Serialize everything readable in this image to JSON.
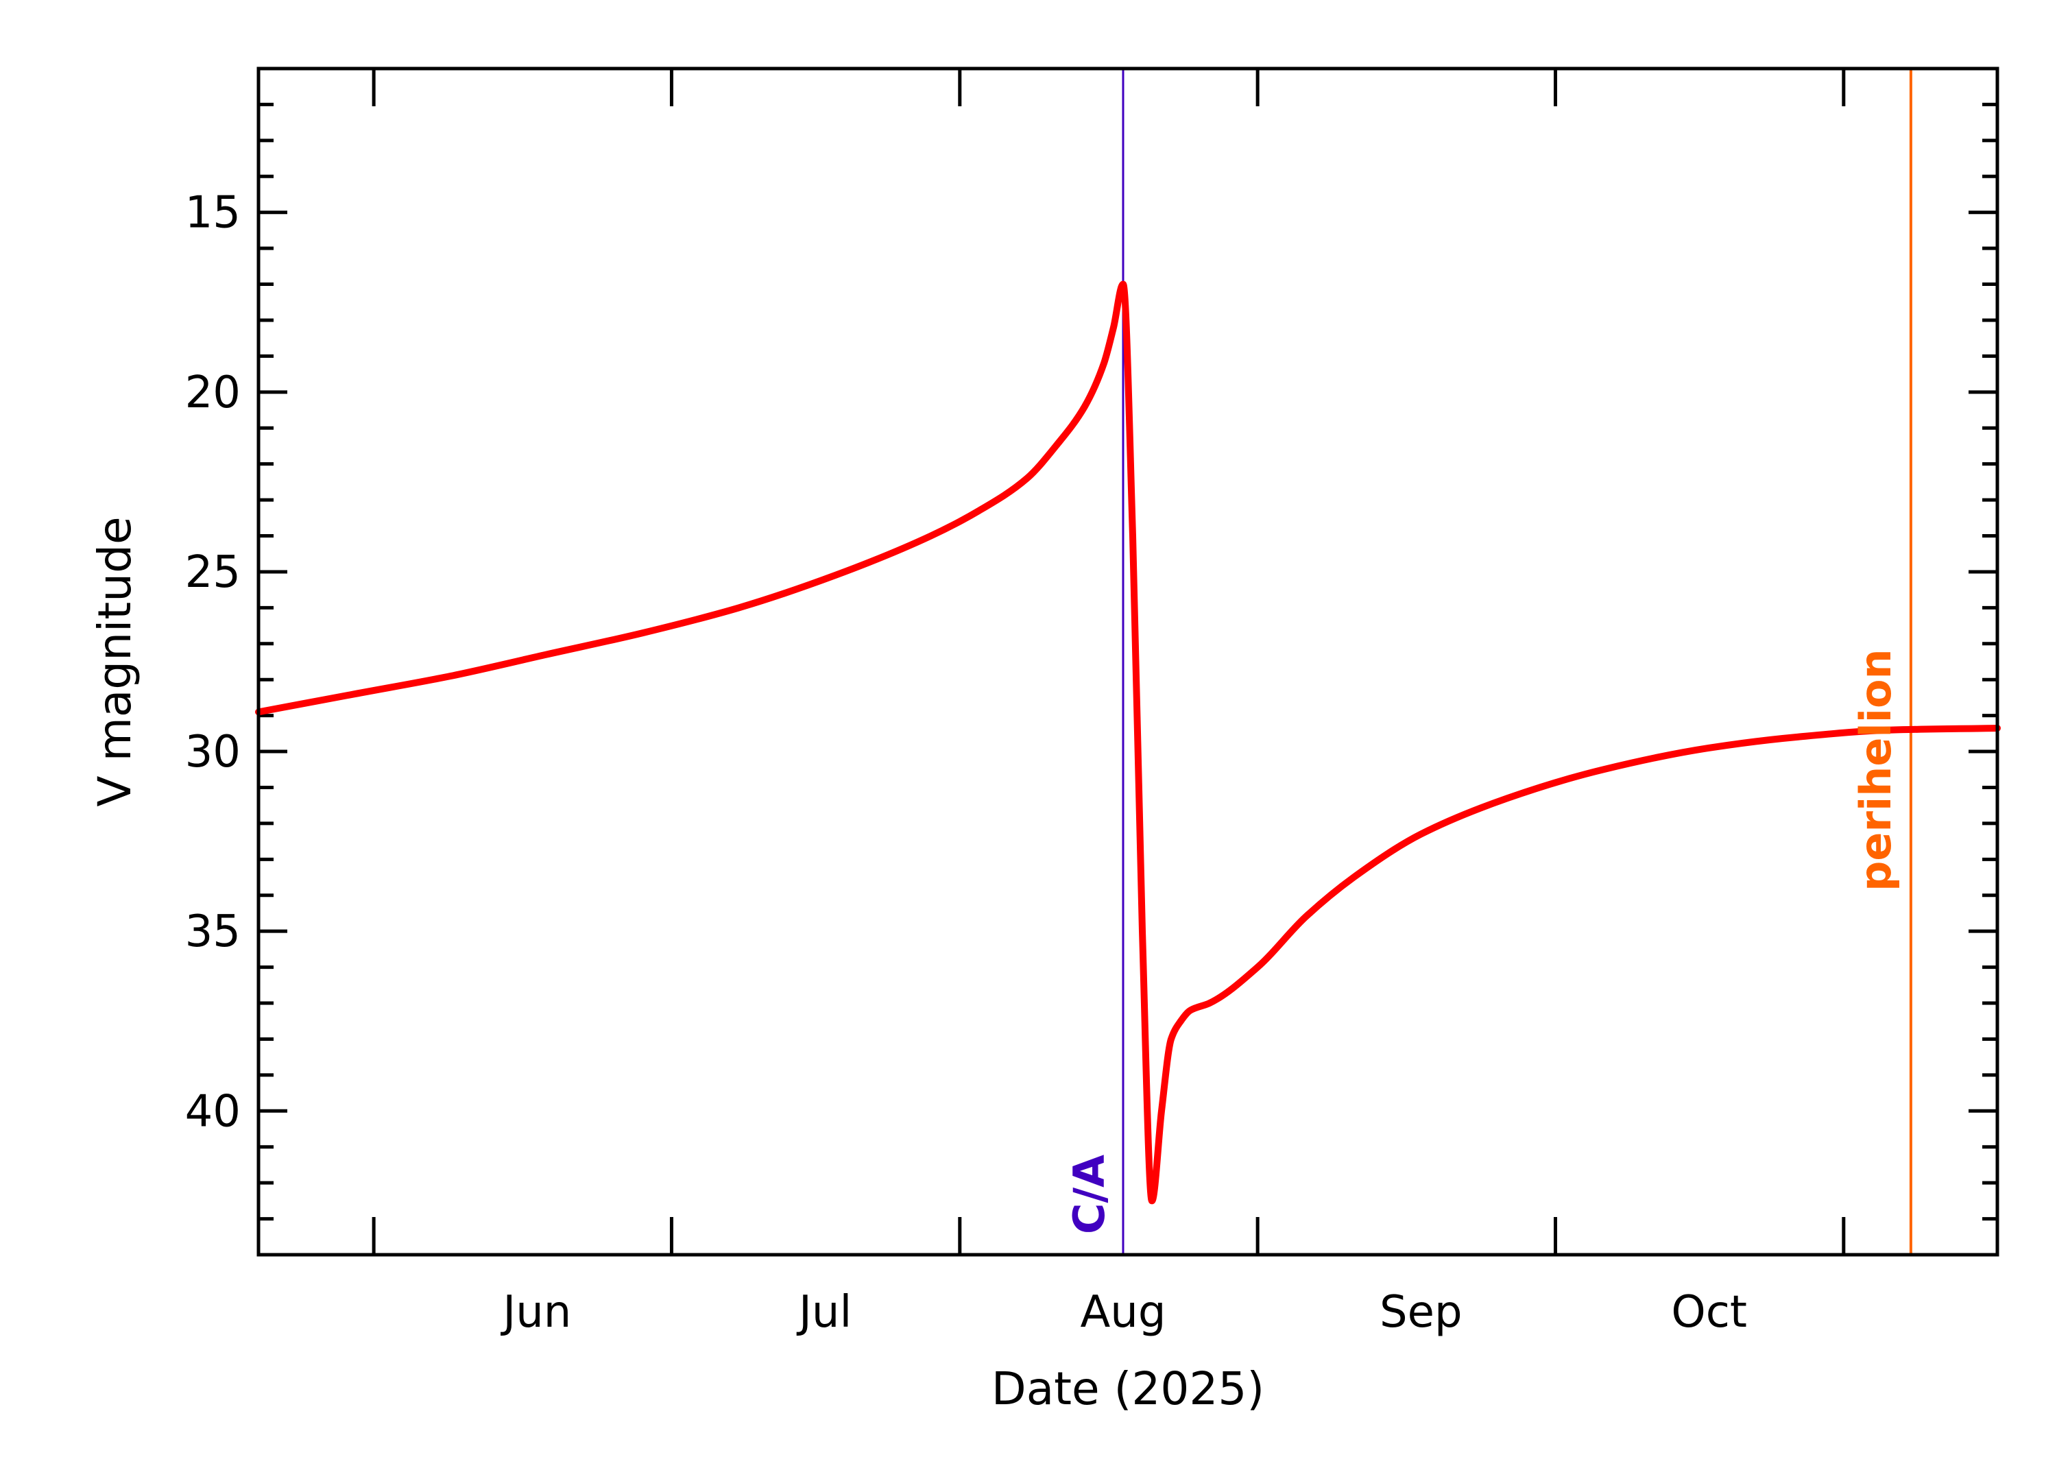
{
  "chart_data": {
    "type": "line",
    "title": "",
    "xlabel": "Date (2025)",
    "ylabel": "V magnitude",
    "y_inverted": true,
    "ylim": [
      44.0,
      11.0
    ],
    "xlim": [
      "2025-05-03",
      "2025-10-31"
    ],
    "grid": false,
    "x_ticks": [
      "Jun",
      "Jul",
      "Aug",
      "Sep",
      "Oct"
    ],
    "x_tick_dates": [
      "2025-06-01",
      "2025-07-01",
      "2025-08-01",
      "2025-09-01",
      "2025-10-01"
    ],
    "y_ticks": [
      "15",
      "20",
      "25",
      "30",
      "35",
      "40"
    ],
    "y_tick_values": [
      15,
      20,
      25,
      30,
      35,
      40
    ],
    "series": [
      {
        "color": "#ff0000",
        "x": [
          "2025-05-03",
          "2025-05-13",
          "2025-05-23",
          "2025-06-02",
          "2025-06-12",
          "2025-06-22",
          "2025-07-02",
          "2025-07-12",
          "2025-07-17",
          "2025-07-22",
          "2025-07-25",
          "2025-07-28",
          "2025-07-30",
          "2025-07-31",
          "2025-08-01",
          "2025-08-02",
          "2025-08-03",
          "2025-08-04",
          "2025-08-05",
          "2025-08-06",
          "2025-08-07",
          "2025-08-08",
          "2025-08-10",
          "2025-08-15",
          "2025-08-20",
          "2025-08-25",
          "2025-09-01",
          "2025-09-10",
          "2025-09-20",
          "2025-10-01",
          "2025-10-10",
          "2025-10-20",
          "2025-10-31"
        ],
        "y": [
          28.9,
          28.4,
          27.9,
          27.3,
          26.7,
          26.0,
          25.1,
          24.0,
          23.3,
          22.4,
          21.5,
          20.4,
          19.2,
          18.2,
          17.0,
          24.0,
          35.0,
          42.5,
          40.0,
          38.0,
          37.5,
          37.2,
          37.0,
          36.0,
          34.6,
          33.5,
          32.3,
          31.3,
          30.5,
          29.9,
          29.6,
          29.4,
          29.35
        ]
      }
    ],
    "annotations": [
      {
        "text": "C/A",
        "date": "2025-08-01",
        "color": "#4000c0"
      },
      {
        "text": "perihelion",
        "date": "2025-10-22",
        "color": "#ff6400"
      }
    ]
  }
}
